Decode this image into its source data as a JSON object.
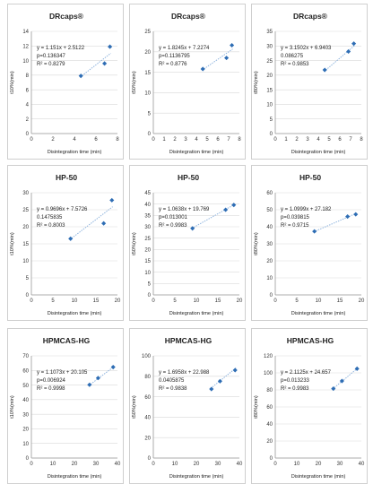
{
  "chart_data": [
    {
      "type": "scatter",
      "title": "DRcaps®",
      "xlabel": "Disintegration time (min)",
      "ylabel": "t10%(min)",
      "xlim": [
        0,
        8
      ],
      "ylim": [
        0,
        14
      ],
      "xticks": [
        0,
        2,
        4,
        6,
        8
      ],
      "yticks": [
        0,
        2,
        4,
        6,
        8,
        10,
        12,
        14
      ],
      "points": [
        {
          "x": 4.6,
          "y": 7.9
        },
        {
          "x": 6.8,
          "y": 9.6
        },
        {
          "x": 7.3,
          "y": 11.9
        }
      ],
      "trendline": {
        "slope": 1.151,
        "intercept": 2.5122
      },
      "annotations": [
        "y = 1.151x + 2.5122",
        "p=0.136347",
        "R² = 0.8279"
      ]
    },
    {
      "type": "scatter",
      "title": "DRcaps®",
      "xlabel": "Disintegration time (min)",
      "ylabel": "t50%(min)",
      "xlim": [
        0,
        8
      ],
      "ylim": [
        0,
        25
      ],
      "xticks": [
        0,
        1,
        2,
        3,
        4,
        5,
        6,
        7,
        8
      ],
      "yticks": [
        0,
        5,
        10,
        15,
        20,
        25
      ],
      "points": [
        {
          "x": 4.6,
          "y": 15.8
        },
        {
          "x": 6.8,
          "y": 18.5
        },
        {
          "x": 7.3,
          "y": 21.6
        }
      ],
      "trendline": {
        "slope": 1.8245,
        "intercept": 7.2274
      },
      "annotations": [
        "y = 1.8245x + 7.2274",
        "p=0.1136795",
        "R² = 0.8776"
      ]
    },
    {
      "type": "scatter",
      "title": "DRcaps®",
      "xlabel": "Disintegration time (min)",
      "ylabel": "t80%(min)",
      "xlim": [
        0,
        8
      ],
      "ylim": [
        0,
        35
      ],
      "xticks": [
        0,
        1,
        2,
        3,
        4,
        5,
        6,
        7,
        8
      ],
      "yticks": [
        0,
        5,
        10,
        15,
        20,
        25,
        30,
        35
      ],
      "points": [
        {
          "x": 4.6,
          "y": 21.8
        },
        {
          "x": 6.8,
          "y": 28.1
        },
        {
          "x": 7.3,
          "y": 30.8
        }
      ],
      "trendline": {
        "slope": 3.1502,
        "intercept": 6.9403
      },
      "annotations": [
        "y = 3.1502x + 6.9403",
        "0.086275",
        "R² = 0.9853"
      ]
    },
    {
      "type": "scatter",
      "title": "HP-50",
      "xlabel": "Disintegration time (min)",
      "ylabel": "t10%(min)",
      "xlim": [
        0,
        20
      ],
      "ylim": [
        0,
        30
      ],
      "xticks": [
        0,
        5,
        10,
        15,
        20
      ],
      "yticks": [
        0,
        5,
        10,
        15,
        20,
        25,
        30
      ],
      "points": [
        {
          "x": 9.1,
          "y": 16.5
        },
        {
          "x": 16.8,
          "y": 21.0
        },
        {
          "x": 18.7,
          "y": 27.8
        }
      ],
      "trendline": {
        "slope": 0.9696,
        "intercept": 7.5726
      },
      "annotations": [
        "y = 0.9696x + 7.5726",
        "0.1475835",
        "R² = 0.8003"
      ]
    },
    {
      "type": "scatter",
      "title": "HP-50",
      "xlabel": "Disintegration time (min)",
      "ylabel": "t50%(min)",
      "xlim": [
        0,
        20
      ],
      "ylim": [
        0,
        45
      ],
      "xticks": [
        0,
        5,
        10,
        15,
        20
      ],
      "yticks": [
        0,
        5,
        10,
        15,
        20,
        25,
        30,
        35,
        40,
        45
      ],
      "points": [
        {
          "x": 9.1,
          "y": 29.3
        },
        {
          "x": 16.8,
          "y": 37.5
        },
        {
          "x": 18.7,
          "y": 39.6
        }
      ],
      "trendline": {
        "slope": 1.0638,
        "intercept": 19.769
      },
      "annotations": [
        "y = 1.0638x + 19.769",
        "p=0.013001",
        "R² = 0.9983"
      ]
    },
    {
      "type": "scatter",
      "title": "HP-50",
      "xlabel": "Disintegration time (min)",
      "ylabel": "t80%(min)",
      "xlim": [
        0,
        20
      ],
      "ylim": [
        0,
        60
      ],
      "xticks": [
        0,
        5,
        10,
        15,
        20
      ],
      "yticks": [
        0,
        10,
        20,
        30,
        40,
        50,
        60
      ],
      "points": [
        {
          "x": 9.1,
          "y": 37.3
        },
        {
          "x": 16.8,
          "y": 46.0
        },
        {
          "x": 18.7,
          "y": 47.3
        }
      ],
      "trendline": {
        "slope": 1.0999,
        "intercept": 27.182
      },
      "annotations": [
        "y = 1.0999x + 27.182",
        "p=0.039815",
        "R² = 0.9715"
      ]
    },
    {
      "type": "scatter",
      "title": "HPMCAS-HG",
      "xlabel": "Disintegration time (min)",
      "ylabel": "t10%(min)",
      "xlim": [
        0,
        40
      ],
      "ylim": [
        0,
        70
      ],
      "xticks": [
        0,
        10,
        20,
        30,
        40
      ],
      "yticks": [
        0,
        10,
        20,
        30,
        40,
        50,
        60,
        70
      ],
      "points": [
        {
          "x": 27,
          "y": 50.2
        },
        {
          "x": 31,
          "y": 54.8
        },
        {
          "x": 38,
          "y": 62.3
        }
      ],
      "trendline": {
        "slope": 1.1073,
        "intercept": 20.105
      },
      "annotations": [
        "y = 1.1073x + 20.105",
        "p=0.006924",
        "R² = 0.9998"
      ]
    },
    {
      "type": "scatter",
      "title": "HPMCAS-HG",
      "xlabel": "Disintegration time (min)",
      "ylabel": "t50%(min)",
      "xlim": [
        0,
        40
      ],
      "ylim": [
        0,
        100
      ],
      "xticks": [
        0,
        10,
        20,
        30,
        40
      ],
      "yticks": [
        0,
        20,
        40,
        60,
        80,
        100
      ],
      "points": [
        {
          "x": 27,
          "y": 67.5
        },
        {
          "x": 31,
          "y": 75.2
        },
        {
          "x": 38,
          "y": 86.0
        }
      ],
      "trendline": {
        "slope": 1.6958,
        "intercept": 22.988
      },
      "annotations": [
        "y = 1.6958x + 22.988",
        "0.0405875",
        "R² = 0.9838"
      ]
    },
    {
      "type": "scatter",
      "title": "HPMCAS-HG",
      "xlabel": "Disintegration time (min)",
      "ylabel": "t80%(min)",
      "xlim": [
        0,
        40
      ],
      "ylim": [
        0,
        120
      ],
      "xticks": [
        0,
        10,
        20,
        30,
        40
      ],
      "yticks": [
        0,
        20,
        40,
        60,
        80,
        100,
        120
      ],
      "points": [
        {
          "x": 27,
          "y": 81.5
        },
        {
          "x": 31,
          "y": 90.5
        },
        {
          "x": 38,
          "y": 104.9
        }
      ],
      "trendline": {
        "slope": 2.1125,
        "intercept": 24.657
      },
      "annotations": [
        "y = 2.1125x + 24.657",
        "p=0.013233",
        "R² = 0.9983"
      ]
    }
  ],
  "colors": {
    "marker": "#2e6db4",
    "trendline": "#8fb4de",
    "gridline": "#d9d9d9",
    "axis": "#9a9a9a"
  }
}
